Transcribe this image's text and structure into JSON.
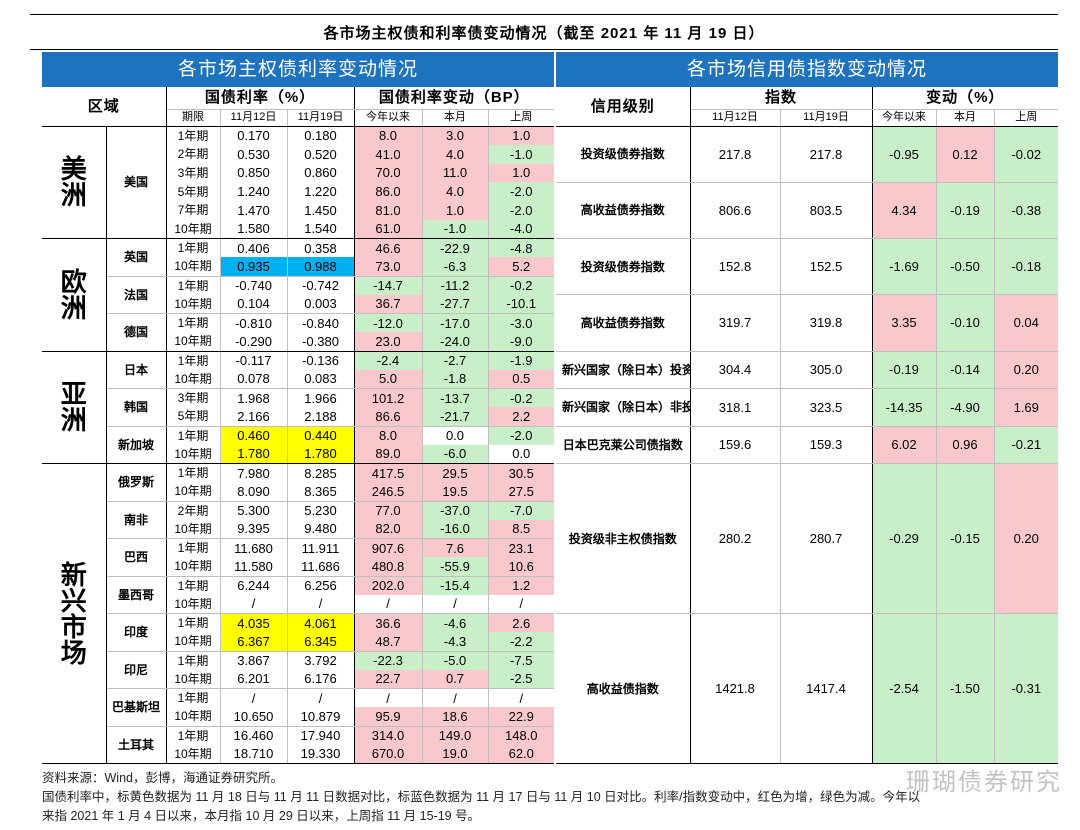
{
  "title": "各市场主权债和利率债变动情况（截至 2021 年 11 月 19 日）",
  "left": {
    "header": "各市场主权债利率变动情况",
    "col_region": "区域",
    "col_yield": "国债利率（%）",
    "col_change": "国债利率变动（BP）",
    "sub_tenor": "期限",
    "sub_d1": "11月12日",
    "sub_d2": "11月19日",
    "sub_ytd": "今年以来",
    "sub_mtd": "本月",
    "sub_wk": "上周",
    "regions": [
      {
        "name": "美洲",
        "countries": [
          {
            "name": "美国",
            "rows": [
              {
                "tenor": "1年期",
                "d1": "0.170",
                "d2": "0.180",
                "ytd": "8.0",
                "ytd_c": "red",
                "mtd": "3.0",
                "mtd_c": "red",
                "wk": "1.0",
                "wk_c": "red"
              },
              {
                "tenor": "2年期",
                "d1": "0.530",
                "d2": "0.520",
                "ytd": "41.0",
                "ytd_c": "red",
                "mtd": "4.0",
                "mtd_c": "red",
                "wk": "-1.0",
                "wk_c": "green"
              },
              {
                "tenor": "3年期",
                "d1": "0.850",
                "d2": "0.860",
                "ytd": "70.0",
                "ytd_c": "red",
                "mtd": "11.0",
                "mtd_c": "red",
                "wk": "1.0",
                "wk_c": "red"
              },
              {
                "tenor": "5年期",
                "d1": "1.240",
                "d2": "1.220",
                "ytd": "86.0",
                "ytd_c": "red",
                "mtd": "4.0",
                "mtd_c": "red",
                "wk": "-2.0",
                "wk_c": "green"
              },
              {
                "tenor": "7年期",
                "d1": "1.470",
                "d2": "1.450",
                "ytd": "81.0",
                "ytd_c": "red",
                "mtd": "1.0",
                "mtd_c": "red",
                "wk": "-2.0",
                "wk_c": "green"
              },
              {
                "tenor": "10年期",
                "d1": "1.580",
                "d2": "1.540",
                "ytd": "61.0",
                "ytd_c": "red",
                "mtd": "-1.0",
                "mtd_c": "green",
                "wk": "-4.0",
                "wk_c": "green"
              }
            ]
          }
        ]
      },
      {
        "name": "欧洲",
        "countries": [
          {
            "name": "英国",
            "rows": [
              {
                "tenor": "1年期",
                "d1": "0.406",
                "d2": "0.358",
                "ytd": "46.6",
                "ytd_c": "red",
                "mtd": "-22.9",
                "mtd_c": "green",
                "wk": "-4.8",
                "wk_c": "green"
              },
              {
                "tenor": "10年期",
                "d1": "0.935",
                "d2": "0.988",
                "d_c": "blue",
                "ytd": "73.0",
                "ytd_c": "red",
                "mtd": "-6.3",
                "mtd_c": "green",
                "wk": "5.2",
                "wk_c": "red"
              }
            ]
          },
          {
            "name": "法国",
            "rows": [
              {
                "tenor": "1年期",
                "d1": "-0.740",
                "d2": "-0.742",
                "ytd": "-14.7",
                "ytd_c": "green",
                "mtd": "-11.2",
                "mtd_c": "green",
                "wk": "-0.2",
                "wk_c": "green"
              },
              {
                "tenor": "10年期",
                "d1": "0.104",
                "d2": "0.003",
                "ytd": "36.7",
                "ytd_c": "red",
                "mtd": "-27.7",
                "mtd_c": "green",
                "wk": "-10.1",
                "wk_c": "green"
              }
            ]
          },
          {
            "name": "德国",
            "rows": [
              {
                "tenor": "1年期",
                "d1": "-0.810",
                "d2": "-0.840",
                "ytd": "-12.0",
                "ytd_c": "green",
                "mtd": "-17.0",
                "mtd_c": "green",
                "wk": "-3.0",
                "wk_c": "green"
              },
              {
                "tenor": "10年期",
                "d1": "-0.290",
                "d2": "-0.380",
                "ytd": "23.0",
                "ytd_c": "red",
                "mtd": "-24.0",
                "mtd_c": "green",
                "wk": "-9.0",
                "wk_c": "green"
              }
            ]
          }
        ]
      },
      {
        "name": "亚洲",
        "countries": [
          {
            "name": "日本",
            "rows": [
              {
                "tenor": "1年期",
                "d1": "-0.117",
                "d2": "-0.136",
                "ytd": "-2.4",
                "ytd_c": "green",
                "mtd": "-2.7",
                "mtd_c": "green",
                "wk": "-1.9",
                "wk_c": "green"
              },
              {
                "tenor": "10年期",
                "d1": "0.078",
                "d2": "0.083",
                "ytd": "5.0",
                "ytd_c": "red",
                "mtd": "-1.8",
                "mtd_c": "green",
                "wk": "0.5",
                "wk_c": "red"
              }
            ]
          },
          {
            "name": "韩国",
            "rows": [
              {
                "tenor": "3年期",
                "d1": "1.968",
                "d2": "1.966",
                "ytd": "101.2",
                "ytd_c": "red",
                "mtd": "-13.7",
                "mtd_c": "green",
                "wk": "-0.2",
                "wk_c": "green"
              },
              {
                "tenor": "5年期",
                "d1": "2.166",
                "d2": "2.188",
                "ytd": "86.6",
                "ytd_c": "red",
                "mtd": "-21.7",
                "mtd_c": "green",
                "wk": "2.2",
                "wk_c": "red"
              }
            ]
          },
          {
            "name": "新加坡",
            "rows": [
              {
                "tenor": "1年期",
                "d1": "0.460",
                "d2": "0.440",
                "d_c": "yellow",
                "ytd": "8.0",
                "ytd_c": "red",
                "mtd": "0.0",
                "mtd_c": "",
                "wk": "-2.0",
                "wk_c": "green"
              },
              {
                "tenor": "10年期",
                "d1": "1.780",
                "d2": "1.780",
                "d_c": "yellow",
                "ytd": "89.0",
                "ytd_c": "red",
                "mtd": "-6.0",
                "mtd_c": "green",
                "wk": "0.0",
                "wk_c": ""
              }
            ]
          }
        ]
      },
      {
        "name": "新兴市场",
        "countries": [
          {
            "name": "俄罗斯",
            "rows": [
              {
                "tenor": "1年期",
                "d1": "7.980",
                "d2": "8.285",
                "ytd": "417.5",
                "ytd_c": "red",
                "mtd": "29.5",
                "mtd_c": "red",
                "wk": "30.5",
                "wk_c": "red"
              },
              {
                "tenor": "10年期",
                "d1": "8.090",
                "d2": "8.365",
                "ytd": "246.5",
                "ytd_c": "red",
                "mtd": "19.5",
                "mtd_c": "red",
                "wk": "27.5",
                "wk_c": "red"
              }
            ]
          },
          {
            "name": "南非",
            "rows": [
              {
                "tenor": "2年期",
                "d1": "5.300",
                "d2": "5.230",
                "ytd": "77.0",
                "ytd_c": "red",
                "mtd": "-37.0",
                "mtd_c": "green",
                "wk": "-7.0",
                "wk_c": "green"
              },
              {
                "tenor": "10年期",
                "d1": "9.395",
                "d2": "9.480",
                "ytd": "82.0",
                "ytd_c": "red",
                "mtd": "-16.0",
                "mtd_c": "green",
                "wk": "8.5",
                "wk_c": "red"
              }
            ]
          },
          {
            "name": "巴西",
            "rows": [
              {
                "tenor": "1年期",
                "d1": "11.680",
                "d2": "11.911",
                "ytd": "907.6",
                "ytd_c": "red",
                "mtd": "7.6",
                "mtd_c": "red",
                "wk": "23.1",
                "wk_c": "red"
              },
              {
                "tenor": "10年期",
                "d1": "11.580",
                "d2": "11.686",
                "ytd": "480.8",
                "ytd_c": "red",
                "mtd": "-55.9",
                "mtd_c": "green",
                "wk": "10.6",
                "wk_c": "red"
              }
            ]
          },
          {
            "name": "墨西哥",
            "rows": [
              {
                "tenor": "1年期",
                "d1": "6.244",
                "d2": "6.256",
                "ytd": "202.0",
                "ytd_c": "red",
                "mtd": "-15.4",
                "mtd_c": "green",
                "wk": "1.2",
                "wk_c": "red"
              },
              {
                "tenor": "10年期",
                "d1": "/",
                "d2": "/",
                "ytd": "/",
                "ytd_c": "",
                "mtd": "/",
                "mtd_c": "",
                "wk": "/",
                "wk_c": ""
              }
            ]
          },
          {
            "name": "印度",
            "rows": [
              {
                "tenor": "1年期",
                "d1": "4.035",
                "d2": "4.061",
                "d_c": "yellow",
                "ytd": "36.6",
                "ytd_c": "red",
                "mtd": "-4.6",
                "mtd_c": "green",
                "wk": "2.6",
                "wk_c": "red"
              },
              {
                "tenor": "10年期",
                "d1": "6.367",
                "d2": "6.345",
                "d_c": "yellow",
                "ytd": "48.7",
                "ytd_c": "red",
                "mtd": "-4.3",
                "mtd_c": "green",
                "wk": "-2.2",
                "wk_c": "green"
              }
            ]
          },
          {
            "name": "印尼",
            "rows": [
              {
                "tenor": "1年期",
                "d1": "3.867",
                "d2": "3.792",
                "ytd": "-22.3",
                "ytd_c": "green",
                "mtd": "-5.0",
                "mtd_c": "green",
                "wk": "-7.5",
                "wk_c": "green"
              },
              {
                "tenor": "10年期",
                "d1": "6.201",
                "d2": "6.176",
                "ytd": "22.7",
                "ytd_c": "red",
                "mtd": "0.7",
                "mtd_c": "red",
                "wk": "-2.5",
                "wk_c": "green"
              }
            ]
          },
          {
            "name": "巴基斯坦",
            "rows": [
              {
                "tenor": "1年期",
                "d1": "/",
                "d2": "/",
                "ytd": "/",
                "ytd_c": "",
                "mtd": "/",
                "mtd_c": "",
                "wk": "/",
                "wk_c": ""
              },
              {
                "tenor": "10年期",
                "d1": "10.650",
                "d2": "10.879",
                "ytd": "95.9",
                "ytd_c": "red",
                "mtd": "18.6",
                "mtd_c": "red",
                "wk": "22.9",
                "wk_c": "red"
              }
            ]
          },
          {
            "name": "土耳其",
            "rows": [
              {
                "tenor": "1年期",
                "d1": "16.460",
                "d2": "17.940",
                "ytd": "314.0",
                "ytd_c": "red",
                "mtd": "149.0",
                "mtd_c": "red",
                "wk": "148.0",
                "wk_c": "red"
              },
              {
                "tenor": "10年期",
                "d1": "18.710",
                "d2": "19.330",
                "ytd": "670.0",
                "ytd_c": "red",
                "mtd": "19.0",
                "mtd_c": "red",
                "wk": "62.0",
                "wk_c": "red"
              }
            ]
          }
        ]
      }
    ]
  },
  "right": {
    "header": "各市场信用债指数变动情况",
    "col_grade": "信用级别",
    "col_index": "指数",
    "col_change": "变动（%）",
    "sub_d1": "11月12日",
    "sub_d2": "11月19日",
    "sub_ytd": "今年以来",
    "sub_mtd": "本月",
    "sub_wk": "上周",
    "rows": [
      {
        "name": "投资级债券指数",
        "span": 3,
        "d1": "217.8",
        "d2": "217.8",
        "ytd": "-0.95",
        "ytd_c": "green",
        "mtd": "0.12",
        "mtd_c": "red",
        "wk": "-0.02",
        "wk_c": "green"
      },
      {
        "name": "高收益债券指数",
        "span": 3,
        "d1": "806.6",
        "d2": "803.5",
        "ytd": "4.34",
        "ytd_c": "red",
        "mtd": "-0.19",
        "mtd_c": "green",
        "wk": "-0.38",
        "wk_c": "green"
      },
      {
        "name": "投资级债券指数",
        "span": 3,
        "d1": "152.8",
        "d2": "152.5",
        "ytd": "-1.69",
        "ytd_c": "green",
        "mtd": "-0.50",
        "mtd_c": "green",
        "wk": "-0.18",
        "wk_c": "green"
      },
      {
        "name": "高收益债券指数",
        "span": 3,
        "d1": "319.7",
        "d2": "319.8",
        "ytd": "3.35",
        "ytd_c": "red",
        "mtd": "-0.10",
        "mtd_c": "green",
        "wk": "0.04",
        "wk_c": "red"
      },
      {
        "name": "新兴国家（除日本）投资级指数",
        "span": 2,
        "d1": "304.4",
        "d2": "305.0",
        "ytd": "-0.19",
        "ytd_c": "green",
        "mtd": "-0.14",
        "mtd_c": "green",
        "wk": "0.20",
        "wk_c": "red"
      },
      {
        "name": "新兴国家（除日本）非投资级指数",
        "span": 2,
        "d1": "318.1",
        "d2": "323.5",
        "ytd": "-14.35",
        "ytd_c": "green",
        "mtd": "-4.90",
        "mtd_c": "green",
        "wk": "1.69",
        "wk_c": "red"
      },
      {
        "name": "日本巴克莱公司债指数",
        "span": 2,
        "d1": "159.6",
        "d2": "159.3",
        "ytd": "6.02",
        "ytd_c": "red",
        "mtd": "0.96",
        "mtd_c": "red",
        "wk": "-0.21",
        "wk_c": "green"
      },
      {
        "name": "投资级非主权债指数",
        "span": 8,
        "d1": "280.2",
        "d2": "280.7",
        "ytd": "-0.29",
        "ytd_c": "green",
        "mtd": "-0.15",
        "mtd_c": "green",
        "wk": "0.20",
        "wk_c": "red"
      },
      {
        "name": "高收益债指数",
        "span": 8,
        "d1": "1421.8",
        "d2": "1417.4",
        "ytd": "-2.54",
        "ytd_c": "green",
        "mtd": "-1.50",
        "mtd_c": "green",
        "wk": "-0.31",
        "wk_c": "green"
      }
    ]
  },
  "footer": {
    "line1": "资料来源：Wind，彭博，海通证券研究所。",
    "line2": "国债利率中，标黄色数据为 11 月 18 日与 11 月 11 日数据对比，标蓝色数据为 11 月 17 日与 11 月 10 日对比。利率/指数变动中，红色为增，绿色为减。今年以",
    "line3": "来指 2021 年 1 月 4 日以来，本月指 10 月 29 日以来，上周指 11 月 15-19 号。",
    "watermark": "珊瑚债券研究"
  },
  "colors": {
    "header_blue": "#1e73be",
    "red_bg": "#f8c8cc",
    "green_bg": "#c9efc9",
    "yellow_bg": "#ffff00",
    "blue_bg": "#00b0f0"
  }
}
